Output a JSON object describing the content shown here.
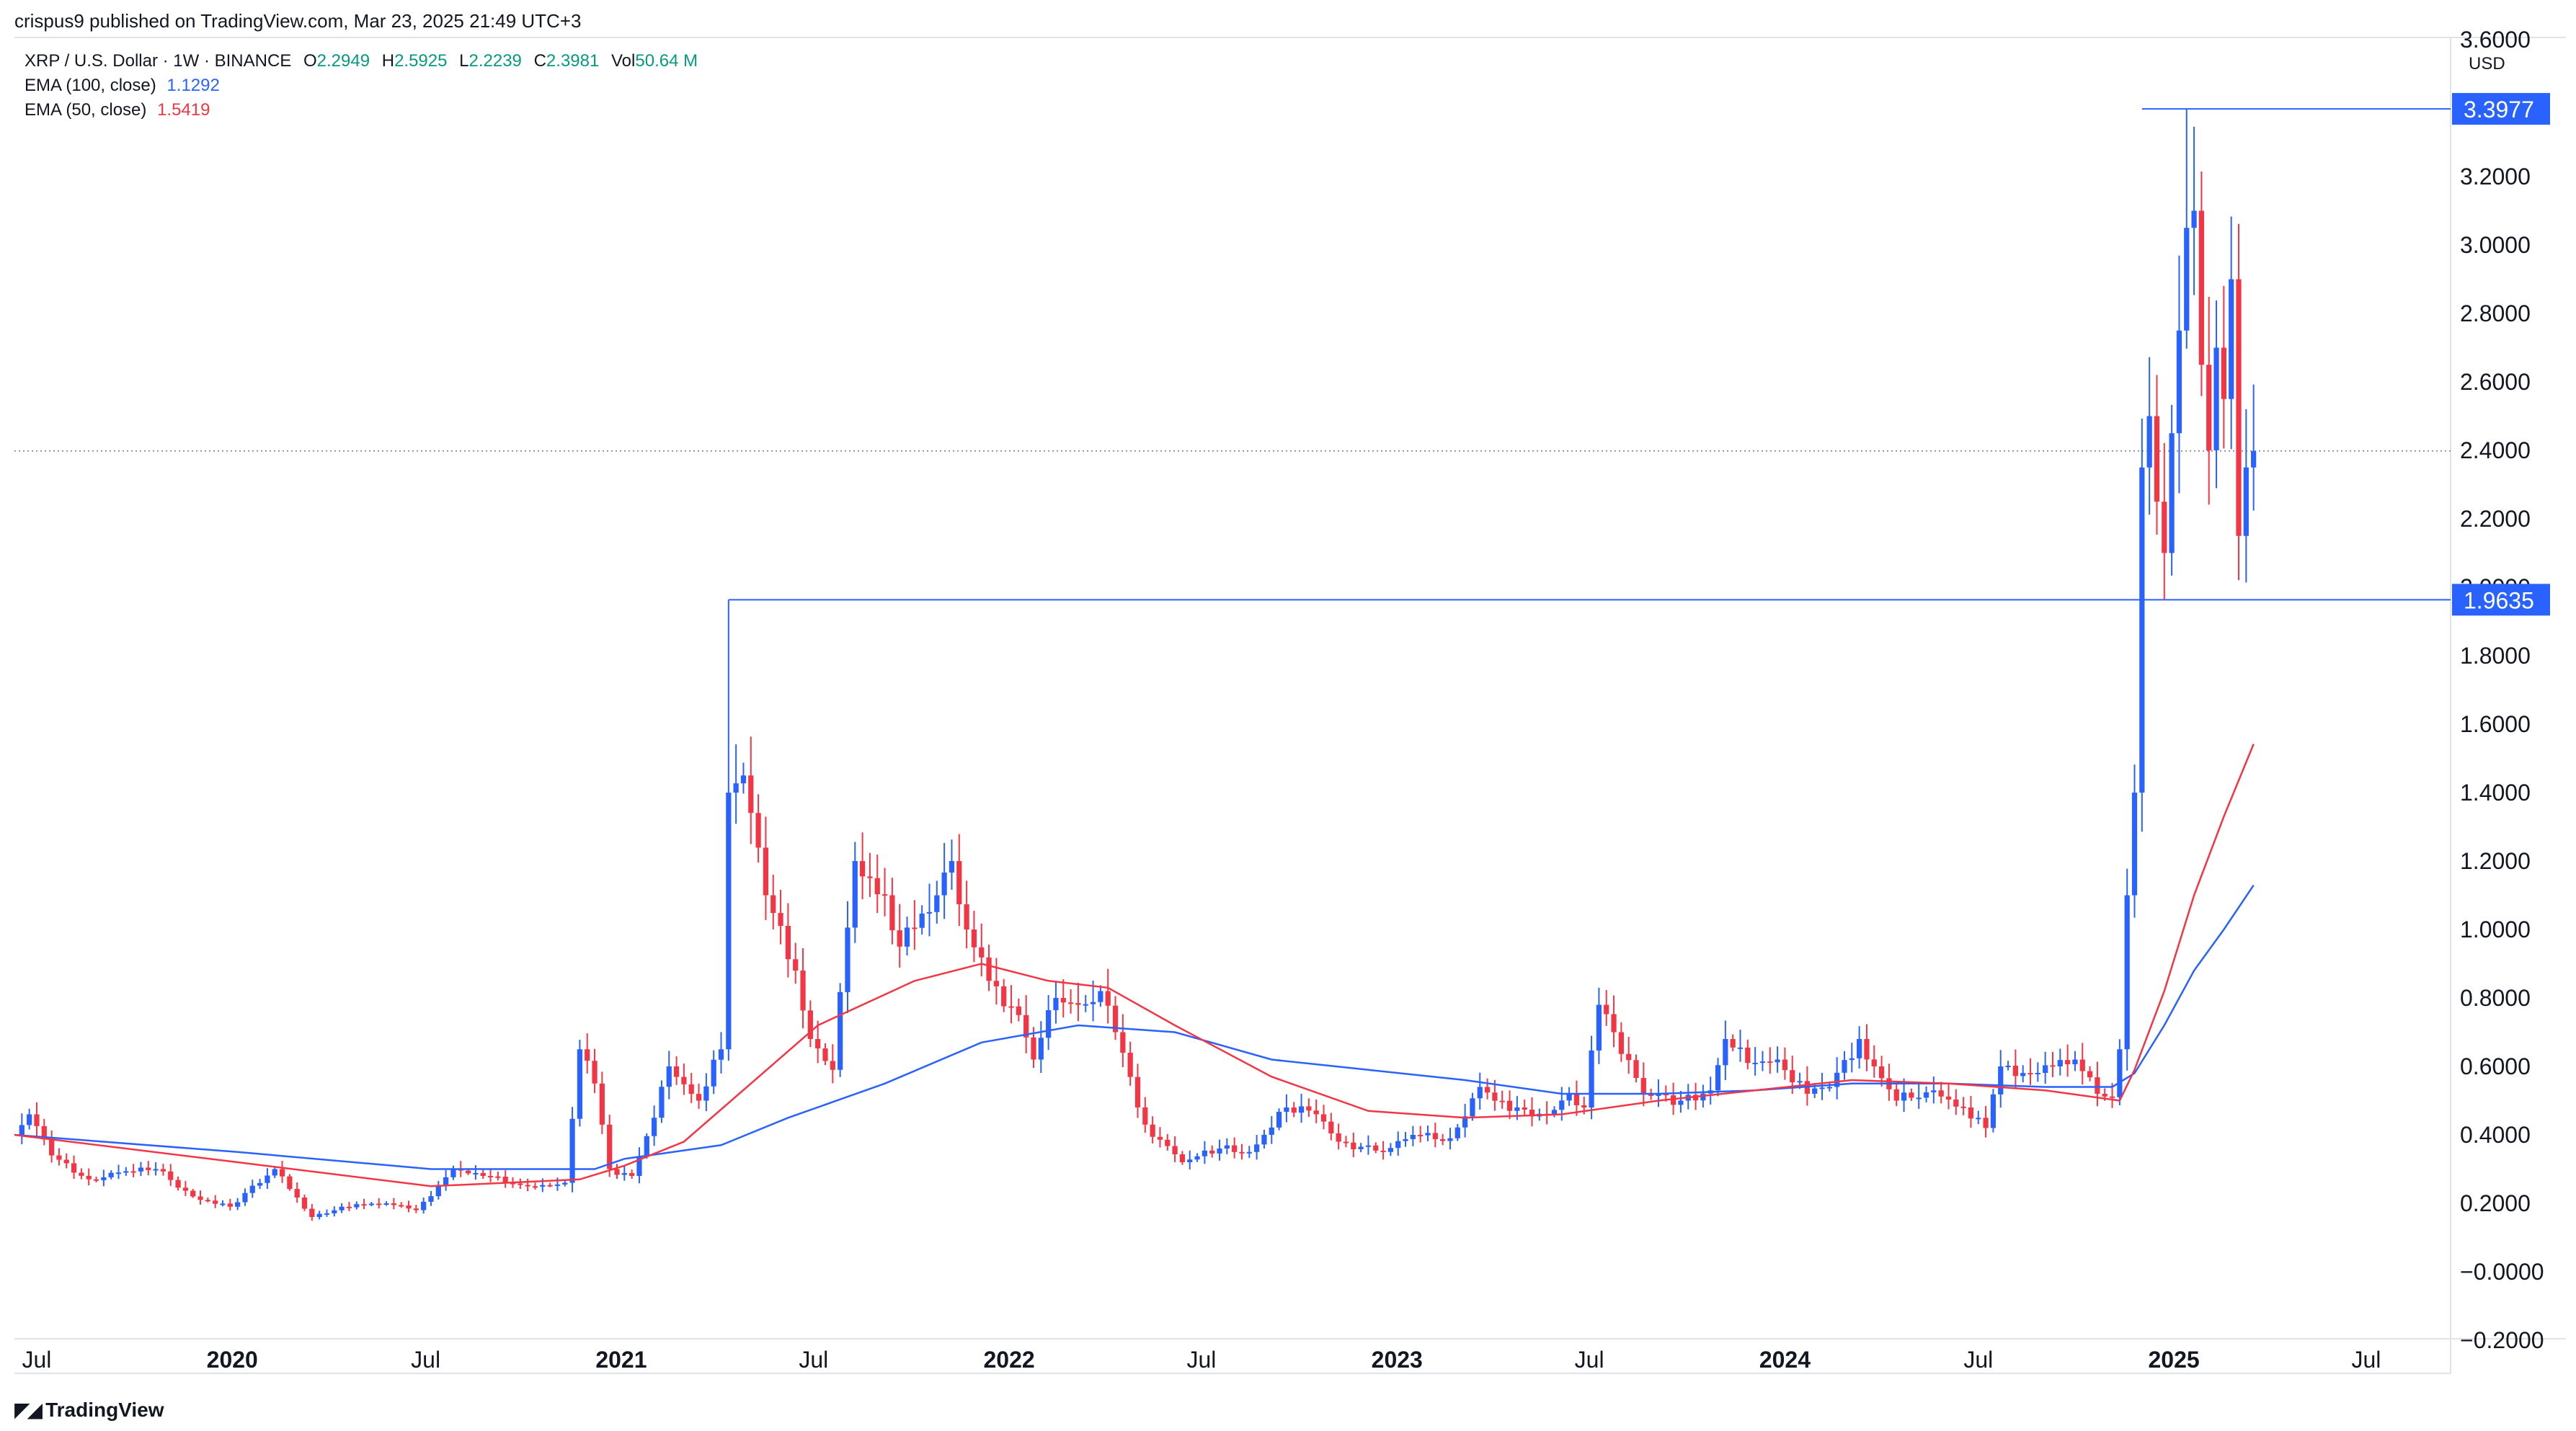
{
  "header": {
    "publish_line": "crispus9 published on TradingView.com, Mar 23, 2025 21:49 UTC+3"
  },
  "legend": {
    "symbol": "XRP / U.S. Dollar · 1W · BINANCE",
    "open_label": "O",
    "open": "2.2949",
    "high_label": "H",
    "high": "2.5925",
    "low_label": "L",
    "low": "2.2239",
    "close_label": "C",
    "close": "2.3981",
    "vol_label": "Vol",
    "vol": "50.64 M",
    "ema100_label": "EMA (100, close)",
    "ema100_value": "1.1292",
    "ema50_label": "EMA (50, close)",
    "ema50_value": "1.5419"
  },
  "footer": {
    "brand": "TradingView"
  },
  "colors": {
    "up": "#2962ff",
    "down": "#f23645",
    "ema100": "#2962ff",
    "ema50": "#f23645",
    "level_line": "#2962ff",
    "level_label_bg": "#2962ff",
    "grid_text": "#131722"
  },
  "chart_data": {
    "type": "candlestick",
    "currency_label": "USD",
    "ylim": [
      -0.2,
      3.6
    ],
    "y_ticks": [
      "3.6000",
      "3.2000",
      "3.0000",
      "2.8000",
      "2.6000",
      "2.4000",
      "2.2000",
      "2.0000",
      "1.8000",
      "1.6000",
      "1.4000",
      "1.2000",
      "1.0000",
      "0.8000",
      "0.6000",
      "0.4000",
      "0.2000",
      "−0.0000",
      "−0.2000"
    ],
    "y_tick_values": [
      3.6,
      3.2,
      3.0,
      2.8,
      2.6,
      2.4,
      2.2,
      2.0,
      1.8,
      1.6,
      1.4,
      1.2,
      1.0,
      0.8,
      0.6,
      0.4,
      0.2,
      0.0,
      -0.2
    ],
    "x_range": [
      "2019-06-10",
      "2025-09-15"
    ],
    "x_ticks": [
      {
        "label": "Jul",
        "date": "2019-07-01",
        "bold": false
      },
      {
        "label": "2020",
        "date": "2020-01-01",
        "bold": true
      },
      {
        "label": "Jul",
        "date": "2020-07-01",
        "bold": false
      },
      {
        "label": "2021",
        "date": "2021-01-01",
        "bold": true
      },
      {
        "label": "Jul",
        "date": "2021-07-01",
        "bold": false
      },
      {
        "label": "2022",
        "date": "2022-01-01",
        "bold": true
      },
      {
        "label": "Jul",
        "date": "2022-07-01",
        "bold": false
      },
      {
        "label": "2023",
        "date": "2023-01-01",
        "bold": true
      },
      {
        "label": "Jul",
        "date": "2023-07-01",
        "bold": false
      },
      {
        "label": "2024",
        "date": "2024-01-01",
        "bold": true
      },
      {
        "label": "Jul",
        "date": "2024-07-01",
        "bold": false
      },
      {
        "label": "2025",
        "date": "2025-01-01",
        "bold": true
      },
      {
        "label": "Jul",
        "date": "2025-07-01",
        "bold": false
      }
    ],
    "current_price": 2.3981,
    "horizontal_levels": [
      {
        "value": 3.3977,
        "label": "3.3977",
        "from": "2024-12-02"
      },
      {
        "value": 1.9635,
        "label": "1.9635",
        "from": "2021-04-12"
      }
    ],
    "anchors": [
      [
        "2019-06-10",
        0.4
      ],
      [
        "2019-06-24",
        0.46
      ],
      [
        "2019-07-15",
        0.34
      ],
      [
        "2019-08-19",
        0.27
      ],
      [
        "2019-09-16",
        0.29
      ],
      [
        "2019-10-21",
        0.3
      ],
      [
        "2019-11-25",
        0.22
      ],
      [
        "2019-12-30",
        0.19
      ],
      [
        "2020-02-10",
        0.3
      ],
      [
        "2020-03-16",
        0.16
      ],
      [
        "2020-04-13",
        0.19
      ],
      [
        "2020-05-25",
        0.2
      ],
      [
        "2020-06-22",
        0.18
      ],
      [
        "2020-07-27",
        0.3
      ],
      [
        "2020-08-24",
        0.28
      ],
      [
        "2020-10-05",
        0.25
      ],
      [
        "2020-11-09",
        0.26
      ],
      [
        "2020-11-23",
        0.65
      ],
      [
        "2020-12-07",
        0.55
      ],
      [
        "2020-12-21",
        0.3
      ],
      [
        "2021-01-11",
        0.28
      ],
      [
        "2021-02-01",
        0.45
      ],
      [
        "2021-02-15",
        0.6
      ],
      [
        "2021-03-15",
        0.5
      ],
      [
        "2021-04-05",
        0.65
      ],
      [
        "2021-04-12",
        1.4
      ],
      [
        "2021-04-26",
        1.45
      ],
      [
        "2021-05-17",
        1.1
      ],
      [
        "2021-06-14",
        0.88
      ],
      [
        "2021-06-28",
        0.68
      ],
      [
        "2021-07-19",
        0.59
      ],
      [
        "2021-08-09",
        1.2
      ],
      [
        "2021-09-06",
        1.1
      ],
      [
        "2021-09-20",
        0.95
      ],
      [
        "2021-10-25",
        1.1
      ],
      [
        "2021-11-08",
        1.2
      ],
      [
        "2021-11-22",
        1.0
      ],
      [
        "2021-12-13",
        0.85
      ],
      [
        "2022-01-10",
        0.75
      ],
      [
        "2022-01-24",
        0.62
      ],
      [
        "2022-02-14",
        0.8
      ],
      [
        "2022-03-07",
        0.78
      ],
      [
        "2022-03-28",
        0.82
      ],
      [
        "2022-04-11",
        0.7
      ],
      [
        "2022-05-09",
        0.43
      ],
      [
        "2022-06-13",
        0.32
      ],
      [
        "2022-07-18",
        0.36
      ],
      [
        "2022-08-15",
        0.35
      ],
      [
        "2022-09-19",
        0.48
      ],
      [
        "2022-10-17",
        0.46
      ],
      [
        "2022-11-07",
        0.38
      ],
      [
        "2022-12-19",
        0.35
      ],
      [
        "2023-01-16",
        0.4
      ],
      [
        "2023-02-20",
        0.39
      ],
      [
        "2023-03-20",
        0.54
      ],
      [
        "2023-04-17",
        0.47
      ],
      [
        "2023-05-22",
        0.46
      ],
      [
        "2023-06-12",
        0.52
      ],
      [
        "2023-06-26",
        0.48
      ],
      [
        "2023-07-10",
        0.78
      ],
      [
        "2023-07-24",
        0.7
      ],
      [
        "2023-08-21",
        0.52
      ],
      [
        "2023-09-25",
        0.5
      ],
      [
        "2023-10-23",
        0.53
      ],
      [
        "2023-11-06",
        0.68
      ],
      [
        "2023-11-27",
        0.61
      ],
      [
        "2023-12-25",
        0.62
      ],
      [
        "2024-01-22",
        0.52
      ],
      [
        "2024-02-12",
        0.54
      ],
      [
        "2024-03-11",
        0.68
      ],
      [
        "2024-03-25",
        0.6
      ],
      [
        "2024-04-15",
        0.5
      ],
      [
        "2024-05-20",
        0.53
      ],
      [
        "2024-06-17",
        0.48
      ],
      [
        "2024-07-08",
        0.42
      ],
      [
        "2024-07-22",
        0.6
      ],
      [
        "2024-08-19",
        0.58
      ],
      [
        "2024-09-30",
        0.62
      ],
      [
        "2024-10-21",
        0.52
      ],
      [
        "2024-11-04",
        0.51
      ],
      [
        "2024-11-11",
        0.65
      ],
      [
        "2024-11-18",
        1.1
      ],
      [
        "2024-11-25",
        1.4
      ],
      [
        "2024-12-02",
        2.35
      ],
      [
        "2024-12-09",
        2.5
      ],
      [
        "2024-12-16",
        2.25
      ],
      [
        "2024-12-23",
        2.1
      ],
      [
        "2024-12-30",
        2.45
      ],
      [
        "2025-01-06",
        2.75
      ],
      [
        "2025-01-13",
        3.05
      ],
      [
        "2025-01-20",
        3.1
      ],
      [
        "2025-01-27",
        2.65
      ],
      [
        "2025-02-03",
        2.4
      ],
      [
        "2025-02-10",
        2.7
      ],
      [
        "2025-02-17",
        2.55
      ],
      [
        "2025-02-24",
        2.9
      ],
      [
        "2025-03-03",
        2.15
      ],
      [
        "2025-03-10",
        2.35
      ],
      [
        "2025-03-17",
        2.3981
      ]
    ],
    "ema100": [
      [
        "2019-06-10",
        0.4
      ],
      [
        "2020-01-06",
        0.35
      ],
      [
        "2020-07-06",
        0.3
      ],
      [
        "2020-12-07",
        0.3
      ],
      [
        "2021-01-04",
        0.33
      ],
      [
        "2021-04-05",
        0.37
      ],
      [
        "2021-06-07",
        0.45
      ],
      [
        "2021-09-06",
        0.55
      ],
      [
        "2021-12-06",
        0.67
      ],
      [
        "2022-03-07",
        0.72
      ],
      [
        "2022-06-06",
        0.7
      ],
      [
        "2022-09-05",
        0.62
      ],
      [
        "2022-12-05",
        0.59
      ],
      [
        "2023-03-06",
        0.56
      ],
      [
        "2023-06-05",
        0.52
      ],
      [
        "2023-09-04",
        0.52
      ],
      [
        "2023-12-04",
        0.53
      ],
      [
        "2024-03-04",
        0.55
      ],
      [
        "2024-06-03",
        0.55
      ],
      [
        "2024-09-02",
        0.54
      ],
      [
        "2024-11-04",
        0.54
      ],
      [
        "2024-11-25",
        0.58
      ],
      [
        "2024-12-23",
        0.72
      ],
      [
        "2025-01-20",
        0.88
      ],
      [
        "2025-02-17",
        1.0
      ],
      [
        "2025-03-17",
        1.1292
      ]
    ],
    "ema50": [
      [
        "2019-06-10",
        0.4
      ],
      [
        "2020-01-06",
        0.32
      ],
      [
        "2020-07-06",
        0.25
      ],
      [
        "2020-11-23",
        0.27
      ],
      [
        "2021-01-04",
        0.31
      ],
      [
        "2021-03-01",
        0.38
      ],
      [
        "2021-05-03",
        0.55
      ],
      [
        "2021-07-05",
        0.72
      ],
      [
        "2021-10-04",
        0.85
      ],
      [
        "2021-12-06",
        0.9
      ],
      [
        "2022-02-07",
        0.85
      ],
      [
        "2022-04-04",
        0.83
      ],
      [
        "2022-06-06",
        0.72
      ],
      [
        "2022-09-05",
        0.57
      ],
      [
        "2022-12-05",
        0.47
      ],
      [
        "2023-03-06",
        0.45
      ],
      [
        "2023-06-05",
        0.46
      ],
      [
        "2023-09-04",
        0.5
      ],
      [
        "2023-12-04",
        0.53
      ],
      [
        "2024-03-04",
        0.56
      ],
      [
        "2024-06-03",
        0.55
      ],
      [
        "2024-09-02",
        0.53
      ],
      [
        "2024-11-11",
        0.5
      ],
      [
        "2024-11-25",
        0.59
      ],
      [
        "2024-12-23",
        0.82
      ],
      [
        "2025-01-20",
        1.1
      ],
      [
        "2025-02-17",
        1.33
      ],
      [
        "2025-03-17",
        1.5419
      ]
    ]
  }
}
